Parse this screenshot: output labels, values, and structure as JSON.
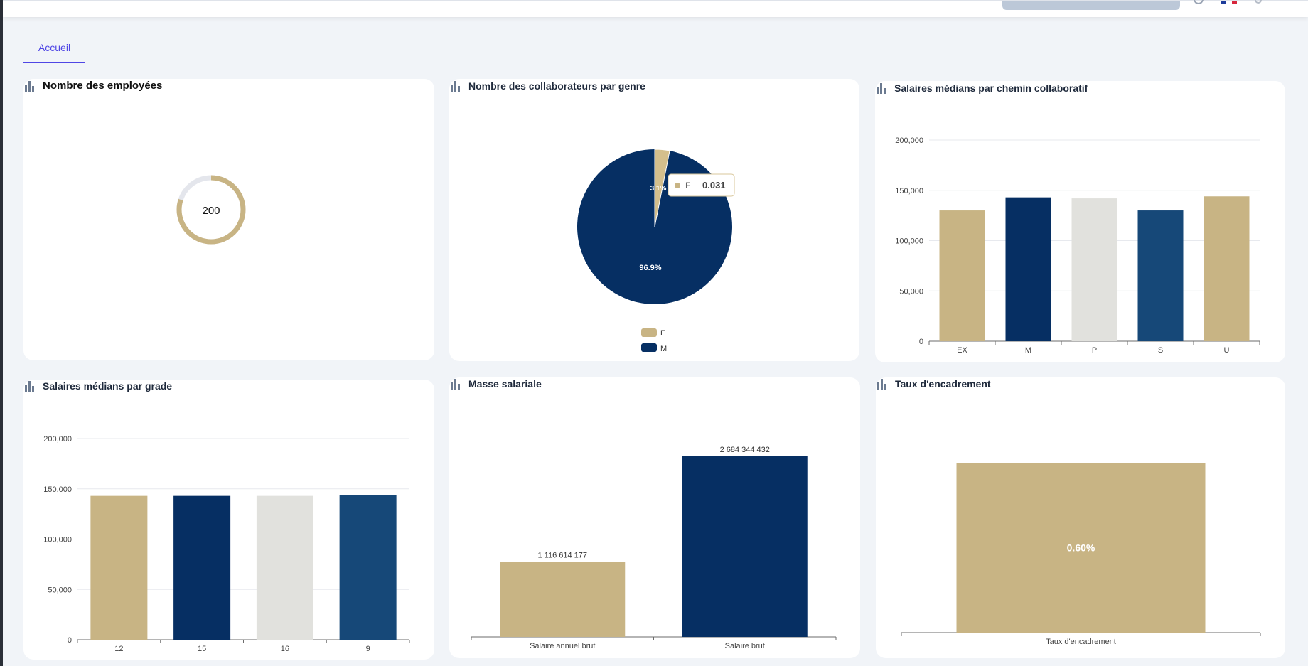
{
  "tabs": [
    {
      "label": "Accueil"
    }
  ],
  "colors": {
    "gold": "#c8b484",
    "navy": "#062f63",
    "light": "#e1e1dd",
    "blue": "#164878",
    "accent": "#4f46e5"
  },
  "cards": {
    "employees": {
      "title": "Nombre des employées",
      "chart_data": {
        "type": "gauge",
        "value": 200,
        "label": "200"
      }
    },
    "gender": {
      "title": "Nombre des collaborateurs par genre",
      "chart_data": {
        "type": "pie",
        "slices": [
          {
            "name": "F",
            "value": 0.031,
            "label": "3.1%"
          },
          {
            "name": "M",
            "value": 0.969,
            "label": "96.9%"
          }
        ],
        "legend": [
          "F",
          "M"
        ],
        "legend_position": "bottom-center"
      },
      "tooltip": {
        "name": "F",
        "value": "0.031"
      }
    },
    "path_salaries": {
      "title": "Salaires médians par chemin collaboratif",
      "chart_data": {
        "type": "bar",
        "categories": [
          "EX",
          "M",
          "P",
          "S",
          "U"
        ],
        "values": [
          130000,
          143000,
          142000,
          130000,
          144000
        ],
        "ylim": [
          0,
          200000
        ],
        "ytick_labels": [
          "0",
          "50,000",
          "100,000",
          "150,000",
          "200,000"
        ],
        "grid": true
      }
    },
    "grade_salaries": {
      "title": "Salaires médians par grade",
      "chart_data": {
        "type": "bar",
        "categories": [
          "12",
          "15",
          "16",
          "9"
        ],
        "values": [
          143000,
          143000,
          143000,
          143500
        ],
        "ylim": [
          0,
          200000
        ],
        "ytick_labels": [
          "0",
          "50,000",
          "100,000",
          "150,000",
          "200,000"
        ],
        "grid": true
      }
    },
    "payroll": {
      "title": "Masse salariale",
      "chart_data": {
        "type": "bar",
        "categories": [
          "Salaire annuel brut",
          "Salaire brut"
        ],
        "values": [
          1116614177,
          2684344432
        ],
        "data_labels": [
          "1 116 614 177",
          "2 684 344 432"
        ]
      }
    },
    "supervision": {
      "title": "Taux d'encadrement",
      "chart_data": {
        "type": "bar",
        "categories": [
          "Taux d'encadrement"
        ],
        "values": [
          0.6
        ],
        "data_labels": [
          "0.60%"
        ]
      }
    }
  }
}
